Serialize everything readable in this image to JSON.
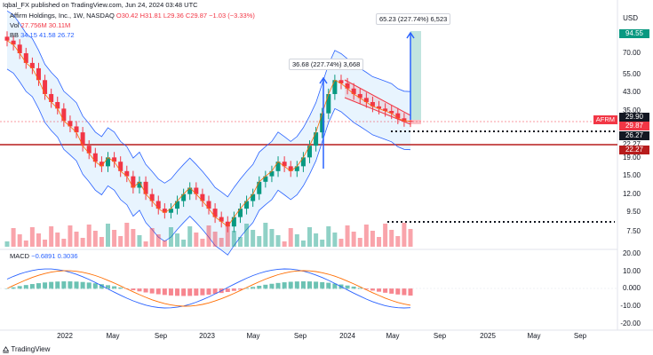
{
  "header": {
    "published": "Iqbal_FX published on TradingView.com, Jun 24, 2024 03:48 UTC"
  },
  "legend": {
    "symbol": "Affirm Holdings, Inc., 1W, NASDAQ",
    "ohlc": "O30.42 H31.81 L29.36 C29.87 −1.03 (−3.33%)",
    "vol_label": "Vol",
    "vol_value": "27.756M 30.11M",
    "bb_label": "BB",
    "bb_values": "34.15 41.58 26.72",
    "macd_label": "MACD",
    "macd_values": "−0.6891 0.3036"
  },
  "currency": "USD",
  "price_axis": [
    "70.00",
    "55.00",
    "43.00",
    "35.00",
    "22.27",
    "19.00",
    "15.00",
    "12.00",
    "9.50",
    "7.50"
  ],
  "price_tags": [
    {
      "text": "94.55",
      "color": "#089981"
    },
    {
      "text": "29.90",
      "color": "#131722"
    },
    {
      "text": "29.87",
      "color": "#f23645"
    },
    {
      "text": "26.27",
      "color": "#131722"
    },
    {
      "text": "22.27",
      "color": "#b71c1c"
    }
  ],
  "ticker_tag": "AFRM",
  "macd_axis": [
    "20.00",
    "10.00",
    "0.000",
    "-10.00",
    "-20.00"
  ],
  "time_axis": [
    "2022",
    "May",
    "Sep",
    "2023",
    "May",
    "Sep",
    "2024",
    "May",
    "Sep",
    "2025",
    "May",
    "Sep"
  ],
  "annotations": {
    "top": "65.23 (227.74%) 6,523",
    "mid": "36.68 (227.74%) 3,668"
  },
  "brand": "TradingView",
  "chart_data": {
    "type": "candlestick",
    "interval": "1W",
    "symbol": "AFRM",
    "last": {
      "open": 30.42,
      "high": 31.81,
      "low": 29.36,
      "close": 29.87,
      "change": -1.03,
      "change_pct": -3.33
    },
    "levels": {
      "resistance": 22.27,
      "support": 26.27,
      "target": 94.55
    },
    "closes": [
      82,
      78,
      70,
      62,
      58,
      50,
      42,
      38,
      35,
      30,
      28,
      26,
      22,
      20,
      18,
      17,
      19,
      18,
      16,
      15,
      13,
      14,
      12,
      11,
      10,
      9.5,
      10,
      11,
      12,
      13,
      12,
      11,
      10,
      9,
      8.5,
      8,
      9,
      10,
      11,
      12,
      14,
      15,
      16,
      18,
      17,
      16,
      17,
      19,
      22,
      26,
      33,
      42,
      50,
      48,
      45,
      42,
      40,
      38,
      36,
      35,
      34,
      33,
      31,
      30,
      29.87
    ],
    "series": [
      {
        "name": "BB upper",
        "color": "#2962ff"
      },
      {
        "name": "BB basis",
        "color": "#ff6d00"
      },
      {
        "name": "BB lower",
        "color": "#2962ff"
      }
    ],
    "macd": {
      "macd": -0.6891,
      "signal": 0.3036
    }
  }
}
